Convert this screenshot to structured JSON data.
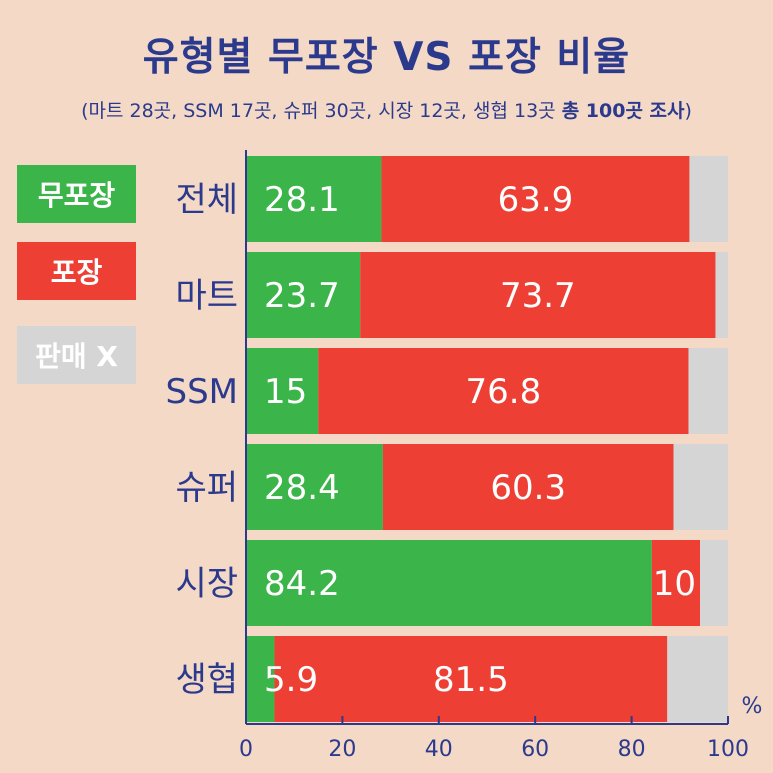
{
  "title": "유형별 무포장 VS 포장 비율",
  "subtitle": {
    "text": "(마트 28곳, SSM 17곳, 슈퍼 30곳, 시장 12곳, 생협 13곳 ",
    "bold": "총 100곳 조사",
    "close": ")"
  },
  "legend": [
    {
      "label": "무포장",
      "color": "#3bb44a"
    },
    {
      "label": "포장",
      "color": "#ee3f34"
    },
    {
      "label": "판매 X",
      "color": "#d5d5d5"
    }
  ],
  "chart_data": {
    "type": "bar",
    "orientation": "horizontal",
    "stacked": true,
    "categories": [
      "전체",
      "마트",
      "SSM",
      "슈퍼",
      "시장",
      "생협"
    ],
    "series": [
      {
        "name": "무포장",
        "color": "#3bb44a",
        "values": [
          28.1,
          23.7,
          15,
          28.4,
          84.2,
          5.9
        ]
      },
      {
        "name": "포장",
        "color": "#ee3f34",
        "values": [
          63.9,
          73.7,
          76.8,
          60.3,
          10,
          81.5
        ]
      },
      {
        "name": "판매 X",
        "color": "#d5d5d5",
        "values": [
          8.0,
          2.6,
          8.2,
          11.3,
          5.8,
          12.6
        ]
      }
    ],
    "data_labels": [
      [
        "28.1",
        "23.7",
        "15",
        "28.4",
        "84.2",
        "5.9"
      ],
      [
        "63.9",
        "73.7",
        "76.8",
        "60.3",
        "10",
        "81.5"
      ]
    ],
    "xlim": [
      0,
      100
    ],
    "xticks": [
      "0",
      "20",
      "40",
      "60",
      "80",
      "100"
    ],
    "unit": "%"
  }
}
